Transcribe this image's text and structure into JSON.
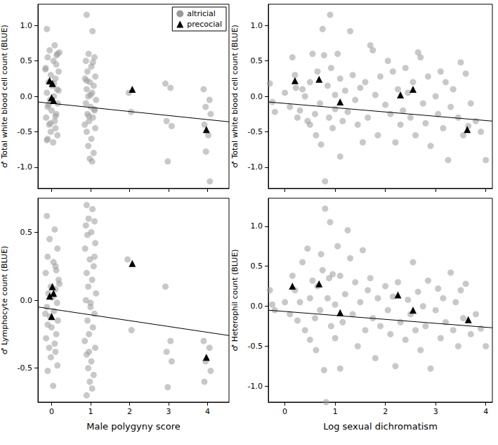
{
  "chart_data": [
    {
      "type": "scatter",
      "y_label": "♂ Total white blood cell count (BLUE)",
      "xlim": [
        -0.35,
        4.55
      ],
      "xticks": [
        0,
        1,
        2,
        3,
        4
      ],
      "ylim": [
        -1.3,
        1.3
      ],
      "yticks": [
        {
          "value": -1,
          "label": "-1.0"
        },
        -0.5,
        {
          "value": 0,
          "label": "0.0"
        },
        0.5,
        {
          "value": 1,
          "label": "1.0"
        }
      ],
      "grid": false,
      "tick_labels": "y",
      "legend": "upper right",
      "series": [
        {
          "name": "altricial",
          "color": "#9a9a9a",
          "marker": "circle",
          "x": [
            -0.12,
            0.08,
            -0.05,
            0.15,
            -0.1,
            0.05,
            0.12,
            -0.15,
            0.18,
            -0.02,
            0.1,
            -0.08,
            0.02,
            0.14,
            -0.12,
            0.06,
            -0.04,
            0.16,
            -0.1,
            0.0,
            0.12,
            -0.14,
            0.08,
            -0.06,
            0.1,
            -0.02,
            0.15,
            -0.1,
            0.04,
            0.2,
            -0.16,
            0.1,
            -0.08,
            0.18,
            -0.03,
            0.06,
            0.13,
            -0.12,
            0.9,
            1.05,
            0.95,
            1.1,
            0.88,
            1.02,
            0.92,
            1.12,
            0.86,
            0.98,
            1.08,
            0.9,
            1.04,
            0.94,
            1.14,
            0.88,
            1.0,
            1.1,
            0.92,
            1.06,
            0.96,
            0.85,
            1.12,
            0.9,
            1.02,
            0.94,
            1.08,
            0.98,
            1.04,
            0.9,
            1.1,
            0.96,
            1.0,
            1.06,
            1.98,
            2.04,
            2.92,
            3.05,
            2.95,
            3.08,
            2.98,
            3.9,
            4.05,
            3.95,
            4.08,
            3.92,
            4.02,
            3.96,
            4.06
          ],
          "values": [
            0.95,
            0.72,
            0.65,
            0.6,
            0.55,
            0.5,
            0.45,
            0.4,
            0.35,
            0.3,
            0.25,
            0.2,
            0.15,
            0.1,
            0.05,
            0.0,
            -0.05,
            -0.1,
            -0.15,
            -0.2,
            -0.25,
            -0.3,
            -0.35,
            -0.4,
            -0.45,
            -0.5,
            -0.55,
            -0.6,
            -0.65,
            0.62,
            0.38,
            -0.28,
            -0.12,
            0.08,
            -0.38,
            0.18,
            0.58,
            -0.62,
            1.15,
            0.92,
            0.6,
            0.55,
            0.5,
            0.42,
            0.35,
            0.28,
            0.25,
            0.2,
            0.15,
            0.1,
            0.05,
            0.0,
            -0.05,
            -0.1,
            -0.15,
            -0.2,
            -0.25,
            -0.3,
            -0.35,
            -0.4,
            -0.45,
            -0.5,
            -0.6,
            -0.7,
            -0.8,
            -0.88,
            -0.92,
            0.22,
            -0.18,
            -0.28,
            0.02,
            0.48,
            0.05,
            -0.22,
            0.18,
            0.12,
            -0.35,
            -0.42,
            -0.92,
            0.1,
            -0.05,
            -0.15,
            -0.25,
            -0.4,
            -0.55,
            -0.78,
            -1.2
          ]
        },
        {
          "name": "precocial",
          "color": "#000000",
          "marker": "triangle",
          "x": [
            -0.05,
            0.02,
            0.0,
            0.05,
            2.07,
            3.97
          ],
          "values": [
            0.22,
            0.18,
            -0.02,
            -0.06,
            0.1,
            -0.47
          ]
        },
        {
          "type": "line",
          "color": "#000000",
          "x": [
            -0.35,
            4.55
          ],
          "values": [
            -0.08,
            -0.36
          ]
        }
      ]
    },
    {
      "type": "scatter",
      "y_label": "♂ Total white blood cell count (BLUE)",
      "xlim": [
        -0.33,
        4.13
      ],
      "xticks": [
        0,
        1,
        2,
        3,
        4
      ],
      "ylim": [
        -1.3,
        1.3
      ],
      "yticks": [
        {
          "value": -1,
          "label": "-1.0"
        },
        -0.5,
        {
          "value": 0,
          "label": "0.0"
        },
        0.5,
        {
          "value": 1,
          "label": "1.0"
        }
      ],
      "grid": false,
      "tick_labels": "y",
      "series": [
        {
          "name": "altricial",
          "color": "#9a9a9a",
          "marker": "circle",
          "x": [
            -0.3,
            -0.25,
            -0.2,
            0.0,
            0.1,
            0.15,
            0.2,
            0.22,
            0.25,
            0.3,
            0.35,
            0.4,
            0.45,
            0.5,
            0.5,
            0.55,
            0.6,
            0.62,
            0.65,
            0.7,
            0.72,
            0.75,
            0.78,
            0.8,
            0.85,
            0.88,
            0.9,
            0.92,
            0.95,
            1.0,
            1.0,
            1.05,
            1.1,
            1.1,
            1.15,
            1.2,
            1.25,
            1.3,
            1.35,
            1.4,
            1.45,
            1.5,
            1.55,
            1.6,
            1.65,
            1.7,
            1.75,
            1.8,
            1.85,
            1.9,
            2.0,
            2.05,
            2.1,
            2.15,
            2.2,
            2.25,
            2.3,
            2.35,
            2.4,
            2.45,
            2.5,
            2.55,
            2.6,
            2.65,
            2.7,
            2.75,
            2.8,
            2.85,
            2.9,
            3.0,
            3.05,
            3.1,
            3.15,
            3.2,
            3.25,
            3.3,
            3.35,
            3.45,
            3.5,
            3.55,
            3.6,
            3.65,
            3.7,
            3.8,
            3.9,
            4.0
          ],
          "values": [
            0.18,
            -0.08,
            -0.22,
            0.05,
            -0.15,
            0.55,
            0.3,
            0.12,
            -0.3,
            -0.2,
            0.1,
            0.0,
            -0.35,
            0.2,
            -0.4,
            0.6,
            -0.25,
            -0.55,
            0.35,
            -0.1,
            -0.68,
            0.95,
            0.58,
            -1.2,
            0.15,
            -0.3,
            1.15,
            0.4,
            -0.45,
            0.02,
            -0.18,
            0.6,
            0.25,
            -0.85,
            -0.35,
            0.08,
            -0.22,
            0.92,
            0.3,
            -0.05,
            -0.4,
            0.12,
            -0.65,
            0.2,
            -0.3,
            0.72,
            0.65,
            0.02,
            -0.55,
            0.28,
            -0.12,
            0.5,
            -0.25,
            0.35,
            -0.65,
            0.1,
            -0.4,
            -0.2,
            0.4,
            0.05,
            -0.3,
            0.2,
            -0.55,
            0.62,
            0.55,
            -0.1,
            -0.38,
            0.28,
            -0.7,
            0.0,
            -0.25,
            0.35,
            -0.45,
            0.2,
            -0.9,
            -0.15,
            0.1,
            -0.3,
            0.48,
            -0.55,
            0.32,
            -0.42,
            -0.1,
            -0.35,
            -0.5,
            -0.9
          ]
        },
        {
          "name": "precocial",
          "color": "#000000",
          "marker": "triangle",
          "x": [
            0.2,
            0.68,
            1.1,
            2.3,
            2.55,
            3.63
          ],
          "values": [
            0.22,
            0.24,
            -0.08,
            0.02,
            0.1,
            -0.47
          ]
        },
        {
          "type": "line",
          "color": "#000000",
          "x": [
            -0.33,
            4.13
          ],
          "values": [
            -0.08,
            -0.35
          ]
        }
      ]
    },
    {
      "type": "scatter",
      "y_label": "♂ Lymphocyte count (BLUE)",
      "x_label": "Male polygyny score",
      "xlim": [
        -0.35,
        4.55
      ],
      "xticks": [
        0,
        1,
        2,
        3,
        4
      ],
      "ylim": [
        -0.75,
        0.75
      ],
      "yticks": [
        -0.5,
        {
          "value": 0,
          "label": "0.0"
        },
        0.5
      ],
      "grid": false,
      "series": [
        {
          "name": "altricial",
          "color": "#9a9a9a",
          "marker": "circle",
          "x": [
            -0.12,
            0.08,
            -0.05,
            0.15,
            -0.1,
            0.05,
            0.12,
            -0.15,
            0.18,
            -0.02,
            0.1,
            -0.08,
            0.02,
            0.14,
            -0.12,
            0.06,
            -0.04,
            0.16,
            -0.1,
            0.0,
            0.12,
            -0.14,
            0.08,
            -0.06,
            0.1,
            -0.02,
            0.15,
            -0.1,
            0.04,
            0.2,
            -0.16,
            0.1,
            0.9,
            1.05,
            0.95,
            1.1,
            0.88,
            1.02,
            0.92,
            1.12,
            0.86,
            0.98,
            1.08,
            0.9,
            1.04,
            0.94,
            1.14,
            0.88,
            1.0,
            1.1,
            0.92,
            1.06,
            0.96,
            0.85,
            1.12,
            0.9,
            1.02,
            0.94,
            1.08,
            0.98,
            1.04,
            0.9,
            1.1,
            0.96,
            1.0,
            1.95,
            2.05,
            2.92,
            3.05,
            2.95,
            3.08,
            2.98,
            3.9,
            4.05,
            3.95,
            4.08,
            3.92
          ],
          "values": [
            0.62,
            0.52,
            0.45,
            0.38,
            0.32,
            0.28,
            0.22,
            0.2,
            0.15,
            0.1,
            0.08,
            0.05,
            0.02,
            -0.02,
            -0.05,
            -0.08,
            -0.12,
            -0.15,
            -0.18,
            -0.2,
            -0.25,
            -0.28,
            -0.32,
            -0.35,
            -0.38,
            -0.42,
            -0.48,
            -0.52,
            -0.63,
            0.12,
            -0.1,
            0.25,
            0.7,
            0.67,
            0.6,
            0.58,
            0.55,
            0.5,
            0.48,
            0.42,
            0.38,
            0.3,
            0.25,
            0.2,
            0.15,
            0.1,
            0.05,
            0.0,
            -0.05,
            -0.1,
            -0.15,
            -0.2,
            -0.25,
            -0.3,
            -0.35,
            -0.4,
            -0.45,
            -0.5,
            -0.55,
            -0.6,
            -0.65,
            -0.7,
            0.32,
            -0.38,
            -0.02,
            0.3,
            -0.22,
            0.1,
            -0.3,
            -0.38,
            -0.45,
            -0.64,
            -0.3,
            -0.35,
            -0.45,
            -0.52,
            -0.6
          ]
        },
        {
          "name": "precocial",
          "color": "#000000",
          "marker": "triangle",
          "x": [
            -0.05,
            0.02,
            0.05,
            0.0,
            2.07,
            3.97
          ],
          "values": [
            0.03,
            0.1,
            0.05,
            -0.12,
            0.27,
            -0.42
          ]
        },
        {
          "type": "line",
          "color": "#000000",
          "x": [
            -0.35,
            4.55
          ],
          "values": [
            -0.05,
            -0.26
          ]
        }
      ]
    },
    {
      "type": "scatter",
      "y_label": "♂ Heterophil count (BLUE)",
      "x_label": "Log sexual dichromatism",
      "xlim": [
        -0.33,
        4.13
      ],
      "xticks": [
        0,
        1,
        2,
        3,
        4
      ],
      "ylim": [
        -1.2,
        1.35
      ],
      "yticks": [
        {
          "value": -1,
          "label": "-1.0"
        },
        -0.5,
        {
          "value": 0,
          "label": "0.0"
        },
        0.5,
        {
          "value": 1,
          "label": "1.0"
        }
      ],
      "grid": false,
      "series": [
        {
          "name": "altricial",
          "color": "#9a9a9a",
          "marker": "circle",
          "x": [
            -0.3,
            -0.25,
            -0.2,
            0.0,
            0.1,
            0.15,
            0.2,
            0.25,
            0.3,
            0.35,
            0.4,
            0.45,
            0.5,
            0.5,
            0.55,
            0.6,
            0.62,
            0.65,
            0.7,
            0.72,
            0.75,
            0.78,
            0.8,
            0.82,
            0.85,
            0.88,
            0.9,
            0.92,
            0.95,
            1.0,
            1.0,
            1.05,
            1.1,
            1.1,
            1.15,
            1.2,
            1.25,
            1.3,
            1.35,
            1.4,
            1.45,
            1.5,
            1.55,
            1.6,
            1.65,
            1.7,
            1.75,
            1.8,
            1.85,
            1.9,
            2.0,
            2.05,
            2.1,
            2.15,
            2.2,
            2.25,
            2.3,
            2.4,
            2.45,
            2.5,
            2.55,
            2.6,
            2.65,
            2.7,
            2.75,
            2.8,
            2.85,
            2.9,
            3.0,
            3.05,
            3.1,
            3.15,
            3.2,
            3.3,
            3.35,
            3.4,
            3.45,
            3.5,
            3.55,
            3.6,
            3.7,
            3.8,
            3.9,
            4.0
          ],
          "values": [
            0.2,
            0.02,
            -0.05,
            0.05,
            -0.1,
            0.38,
            0.2,
            -0.18,
            0.05,
            0.55,
            -0.3,
            0.72,
            0.1,
            -0.42,
            0.32,
            -0.15,
            -0.55,
            0.25,
            -0.05,
            0.65,
            0.45,
            -0.8,
            1.22,
            -1.2,
            0.1,
            0.35,
            1.05,
            -0.25,
            0.4,
            0.02,
            -0.4,
            0.75,
            0.38,
            -0.78,
            -0.2,
            0.15,
            0.95,
            0.6,
            -0.1,
            0.3,
            -0.5,
            0.05,
            0.7,
            -0.3,
            0.2,
            0.35,
            -0.15,
            -0.65,
            0.1,
            -0.25,
            0.25,
            -0.05,
            -0.35,
            0.12,
            -0.75,
            0.3,
            -0.2,
            -0.42,
            0.08,
            -0.1,
            0.55,
            -0.3,
            0.18,
            -0.55,
            0.0,
            -0.25,
            0.32,
            -0.78,
            -0.05,
            0.22,
            -0.4,
            0.1,
            -0.2,
            0.42,
            -0.3,
            0.05,
            -0.5,
            0.2,
            -0.15,
            0.28,
            -0.35,
            -0.1,
            -0.28,
            -0.5
          ]
        },
        {
          "name": "precocial",
          "color": "#000000",
          "marker": "triangle",
          "x": [
            0.15,
            0.68,
            1.1,
            2.25,
            2.55,
            3.65
          ],
          "values": [
            0.25,
            0.28,
            -0.08,
            0.14,
            -0.05,
            -0.17
          ]
        },
        {
          "type": "line",
          "color": "#000000",
          "x": [
            -0.33,
            4.13
          ],
          "values": [
            -0.05,
            -0.27
          ]
        }
      ]
    }
  ]
}
